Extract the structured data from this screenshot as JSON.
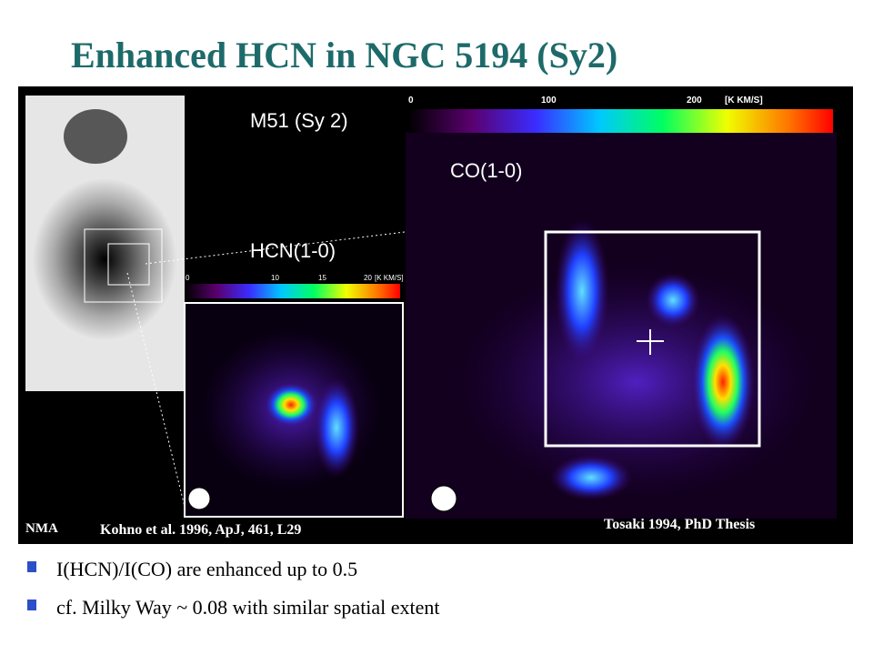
{
  "header": {
    "title": "Enhanced HCN in NGC 5194 (Sy2)"
  },
  "figure": {
    "labels": {
      "galaxy": "M51 (Sy 2)",
      "co": "CO(1-0)",
      "hcn": "HCN(1-0)",
      "nma": "NMA",
      "kohno": "Kohno et al. 1996, ApJ, 461, L29",
      "tosaki": "Tosaki 1994, PhD Thesis"
    },
    "co_colorbar": {
      "ticks": [
        "0",
        "100",
        "200"
      ],
      "unit": "[K KM/S]"
    },
    "hcn_colorbar": {
      "ticks": [
        "0",
        "10",
        "15",
        "20"
      ],
      "unit": "[K KM/S]"
    }
  },
  "bullets": [
    "I(HCN)/I(CO) are enhanced up to 0.5",
    "cf. Milky Way ~ 0.08 with similar spatial extent"
  ]
}
